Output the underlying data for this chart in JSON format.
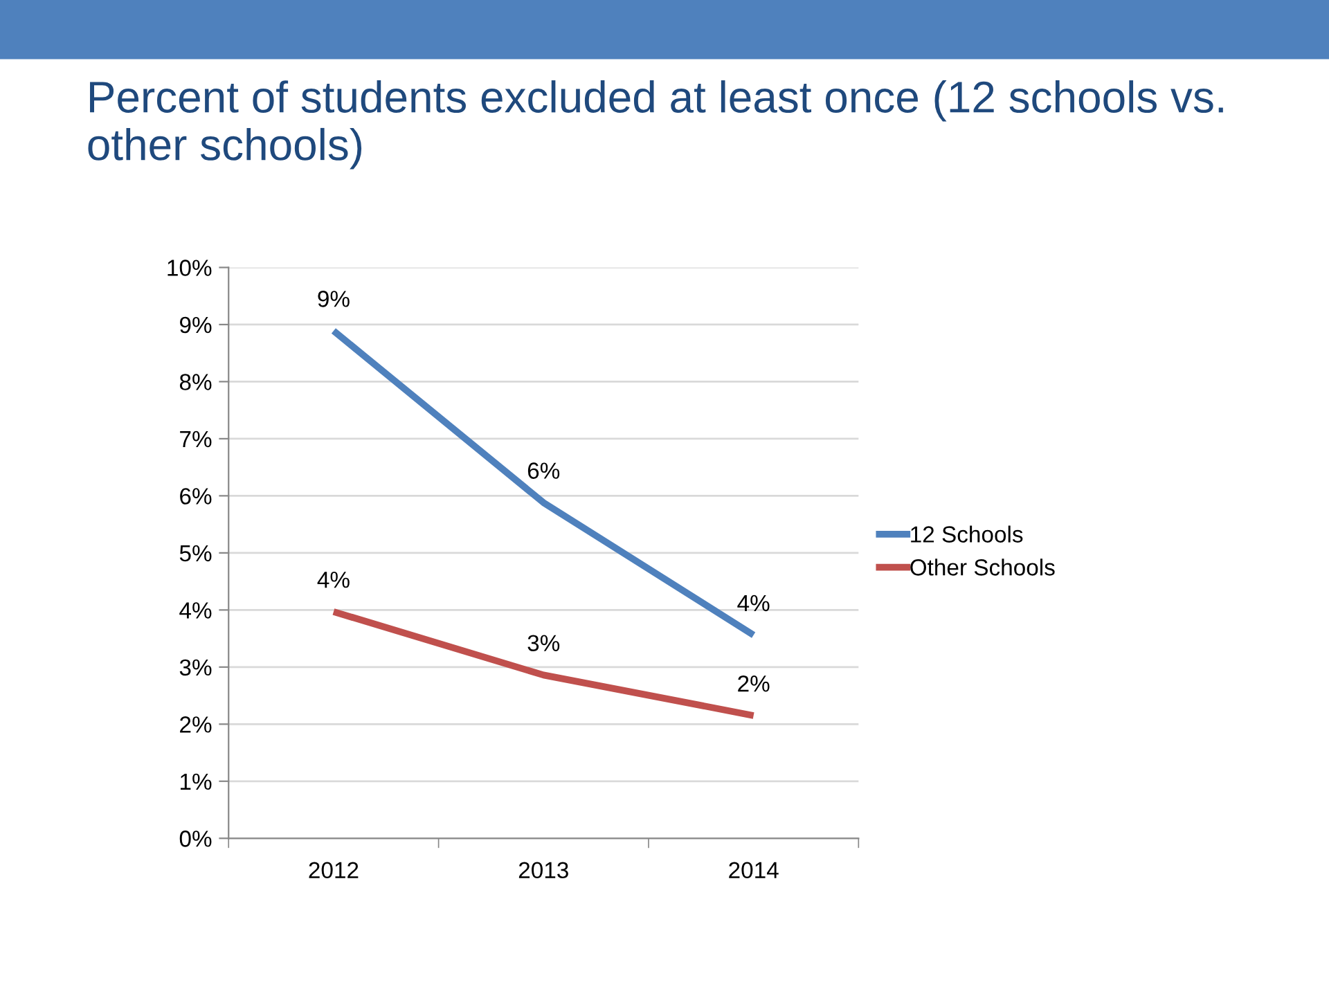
{
  "chart_data": {
    "type": "line",
    "title": "Percent of students excluded at least once (12 schools vs. other schools)",
    "categories": [
      "2012",
      "2013",
      "2014"
    ],
    "series": [
      {
        "name": "12 Schools",
        "color": "#4f81bd",
        "values": [
          8.89,
          5.88,
          3.56
        ],
        "value_labels": [
          "9%",
          "6%",
          "4%"
        ]
      },
      {
        "name": "Other Schools",
        "color": "#c0504d",
        "values": [
          3.97,
          2.86,
          2.15
        ],
        "value_labels": [
          "4%",
          "3%",
          "2%"
        ]
      }
    ],
    "ylim": [
      0,
      10
    ],
    "yticks": [
      {
        "value": 0,
        "label": "0%"
      },
      {
        "value": 1,
        "label": "1%"
      },
      {
        "value": 2,
        "label": "2%"
      },
      {
        "value": 3,
        "label": "3%"
      },
      {
        "value": 4,
        "label": "4%"
      },
      {
        "value": 5,
        "label": "5%"
      },
      {
        "value": 6,
        "label": "6%"
      },
      {
        "value": 7,
        "label": "7%"
      },
      {
        "value": 8,
        "label": "8%"
      },
      {
        "value": 9,
        "label": "9%"
      },
      {
        "value": 10,
        "label": "10%"
      }
    ],
    "grid": "y",
    "legend": "right",
    "marker": "none",
    "line_style": "solid"
  }
}
